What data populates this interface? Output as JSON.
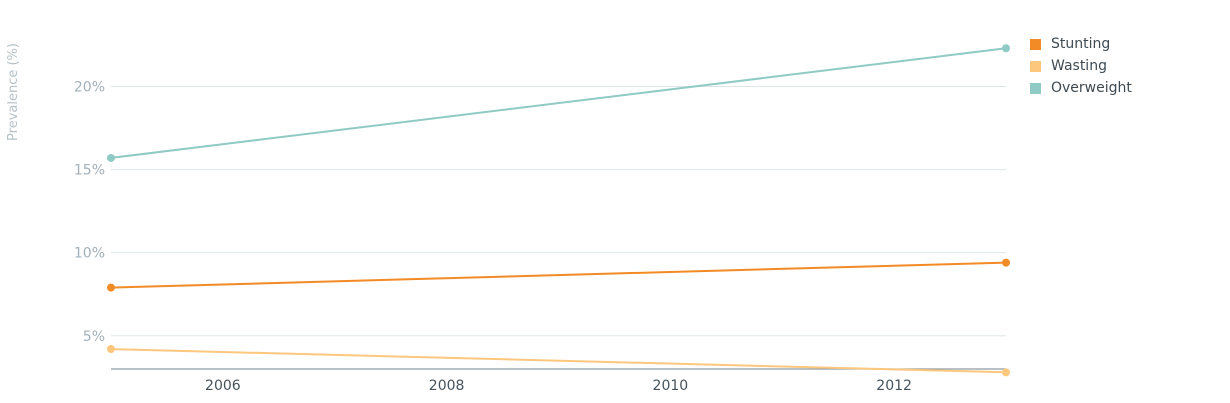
{
  "chart_data": {
    "type": "line",
    "x": [
      2005,
      2013
    ],
    "xticks": [
      2006,
      2008,
      2010,
      2012
    ],
    "xlim": [
      2005,
      2013
    ],
    "ylabel": "Prevalence (%)",
    "yticks": [
      5,
      10,
      15,
      20
    ],
    "ytick_labels": [
      "5%",
      "10%",
      "15%",
      "20%"
    ],
    "ylim": [
      3,
      24
    ],
    "grid": true,
    "legend_position": "top-right",
    "series": [
      {
        "name": "Stunting",
        "color": "#f28a26",
        "values": [
          7.9,
          9.4
        ]
      },
      {
        "name": "Wasting",
        "color": "#fdc77d",
        "values": [
          4.2,
          2.8
        ]
      },
      {
        "name": "Overweight",
        "color": "#8fcac4",
        "values": [
          15.7,
          22.3
        ]
      }
    ]
  }
}
